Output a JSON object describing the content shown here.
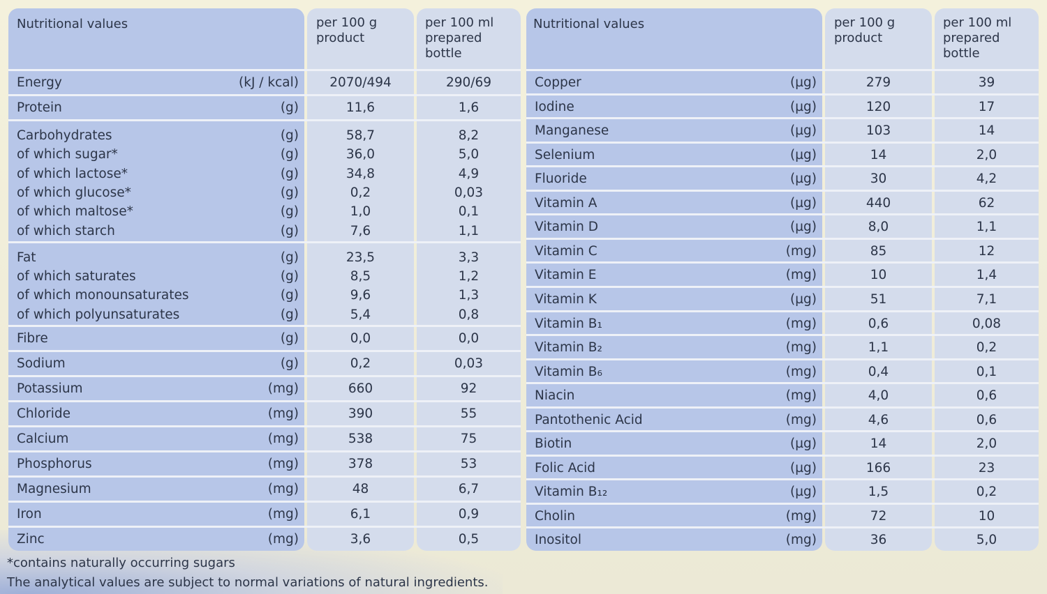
{
  "headers": {
    "nutritional_values": "Nutritional values",
    "per_100g": [
      "per 100 g",
      "product"
    ],
    "per_100ml": [
      "per 100 ml",
      "prepared",
      "bottle"
    ]
  },
  "left_table": {
    "groups": [
      {
        "rows": [
          {
            "name": "Energy",
            "unit": "(kJ / kcal)",
            "per_100g": "2070/494",
            "per_100ml": "290/69"
          }
        ]
      },
      {
        "rows": [
          {
            "name": "Protein",
            "unit": "(g)",
            "per_100g": "11,6",
            "per_100ml": "1,6"
          }
        ]
      },
      {
        "rows": [
          {
            "name": "Carbohydrates",
            "unit": "(g)",
            "per_100g": "58,7",
            "per_100ml": "8,2"
          },
          {
            "name": "of which sugar*",
            "unit": "(g)",
            "per_100g": "36,0",
            "per_100ml": "5,0"
          },
          {
            "name": "of which lactose*",
            "unit": "(g)",
            "per_100g": "34,8",
            "per_100ml": "4,9"
          },
          {
            "name": "of which glucose*",
            "unit": "(g)",
            "per_100g": "0,2",
            "per_100ml": "0,03"
          },
          {
            "name": "of which maltose*",
            "unit": "(g)",
            "per_100g": "1,0",
            "per_100ml": "0,1"
          },
          {
            "name": "of which starch",
            "unit": "(g)",
            "per_100g": "7,6",
            "per_100ml": "1,1"
          }
        ]
      },
      {
        "rows": [
          {
            "name": "Fat",
            "unit": "(g)",
            "per_100g": "23,5",
            "per_100ml": "3,3"
          },
          {
            "name": "of which saturates",
            "unit": "(g)",
            "per_100g": "8,5",
            "per_100ml": "1,2"
          },
          {
            "name": "of which monounsaturates",
            "unit": "(g)",
            "per_100g": "9,6",
            "per_100ml": "1,3"
          },
          {
            "name": "of which polyunsaturates",
            "unit": "(g)",
            "per_100g": "5,4",
            "per_100ml": "0,8"
          }
        ]
      },
      {
        "rows": [
          {
            "name": "Fibre",
            "unit": "(g)",
            "per_100g": "0,0",
            "per_100ml": "0,0"
          }
        ]
      },
      {
        "rows": [
          {
            "name": "Sodium",
            "unit": "(g)",
            "per_100g": "0,2",
            "per_100ml": "0,03"
          }
        ]
      },
      {
        "rows": [
          {
            "name": "Potassium",
            "unit": "(mg)",
            "per_100g": "660",
            "per_100ml": "92"
          }
        ]
      },
      {
        "rows": [
          {
            "name": "Chloride",
            "unit": "(mg)",
            "per_100g": "390",
            "per_100ml": "55"
          }
        ]
      },
      {
        "rows": [
          {
            "name": "Calcium",
            "unit": "(mg)",
            "per_100g": "538",
            "per_100ml": "75"
          }
        ]
      },
      {
        "rows": [
          {
            "name": "Phosphorus",
            "unit": "(mg)",
            "per_100g": "378",
            "per_100ml": "53"
          }
        ]
      },
      {
        "rows": [
          {
            "name": "Magnesium",
            "unit": "(mg)",
            "per_100g": "48",
            "per_100ml": "6,7"
          }
        ]
      },
      {
        "rows": [
          {
            "name": "Iron",
            "unit": "(mg)",
            "per_100g": "6,1",
            "per_100ml": "0,9"
          }
        ]
      },
      {
        "rows": [
          {
            "name": "Zinc",
            "unit": "(mg)",
            "per_100g": "3,6",
            "per_100ml": "0,5"
          }
        ]
      }
    ]
  },
  "right_table": {
    "rows": [
      {
        "name": "Copper",
        "unit": "(µg)",
        "per_100g": "279",
        "per_100ml": "39"
      },
      {
        "name": "Iodine",
        "unit": "(µg)",
        "per_100g": "120",
        "per_100ml": "17"
      },
      {
        "name": "Manganese",
        "unit": "(µg)",
        "per_100g": "103",
        "per_100ml": "14"
      },
      {
        "name": "Selenium",
        "unit": "(µg)",
        "per_100g": "14",
        "per_100ml": "2,0"
      },
      {
        "name": "Fluoride",
        "unit": "(µg)",
        "per_100g": "30",
        "per_100ml": "4,2"
      },
      {
        "name": "Vitamin A",
        "unit": "(µg)",
        "per_100g": "440",
        "per_100ml": "62"
      },
      {
        "name": "Vitamin D",
        "unit": "(µg)",
        "per_100g": "8,0",
        "per_100ml": "1,1"
      },
      {
        "name": "Vitamin C",
        "unit": "(mg)",
        "per_100g": "85",
        "per_100ml": "12"
      },
      {
        "name": "Vitamin E",
        "unit": "(mg)",
        "per_100g": "10",
        "per_100ml": "1,4"
      },
      {
        "name": "Vitamin K",
        "unit": "(µg)",
        "per_100g": "51",
        "per_100ml": "7,1"
      },
      {
        "name": "Vitamin B₁",
        "unit": "(mg)",
        "per_100g": "0,6",
        "per_100ml": "0,08"
      },
      {
        "name": "Vitamin B₂",
        "unit": "(mg)",
        "per_100g": "1,1",
        "per_100ml": "0,2"
      },
      {
        "name": "Vitamin B₆",
        "unit": "(mg)",
        "per_100g": "0,4",
        "per_100ml": "0,1"
      },
      {
        "name": "Niacin",
        "unit": "(mg)",
        "per_100g": "4,0",
        "per_100ml": "0,6"
      },
      {
        "name": "Pantothenic Acid",
        "unit": "(mg)",
        "per_100g": "4,6",
        "per_100ml": "0,6"
      },
      {
        "name": "Biotin",
        "unit": "(µg)",
        "per_100g": "14",
        "per_100ml": "2,0"
      },
      {
        "name": "Folic Acid",
        "unit": "(µg)",
        "per_100g": "166",
        "per_100ml": "23"
      },
      {
        "name": "Vitamin B₁₂",
        "unit": "(µg)",
        "per_100g": "1,5",
        "per_100ml": "0,2"
      },
      {
        "name": "Cholin",
        "unit": "(mg)",
        "per_100g": "72",
        "per_100ml": "10"
      },
      {
        "name": "Inositol",
        "unit": "(mg)",
        "per_100g": "36",
        "per_100ml": "5,0"
      }
    ]
  },
  "footnotes": {
    "sugars": "*contains naturally occurring sugars",
    "variations": "The analytical values are subject to normal variations of natural ingredients."
  }
}
